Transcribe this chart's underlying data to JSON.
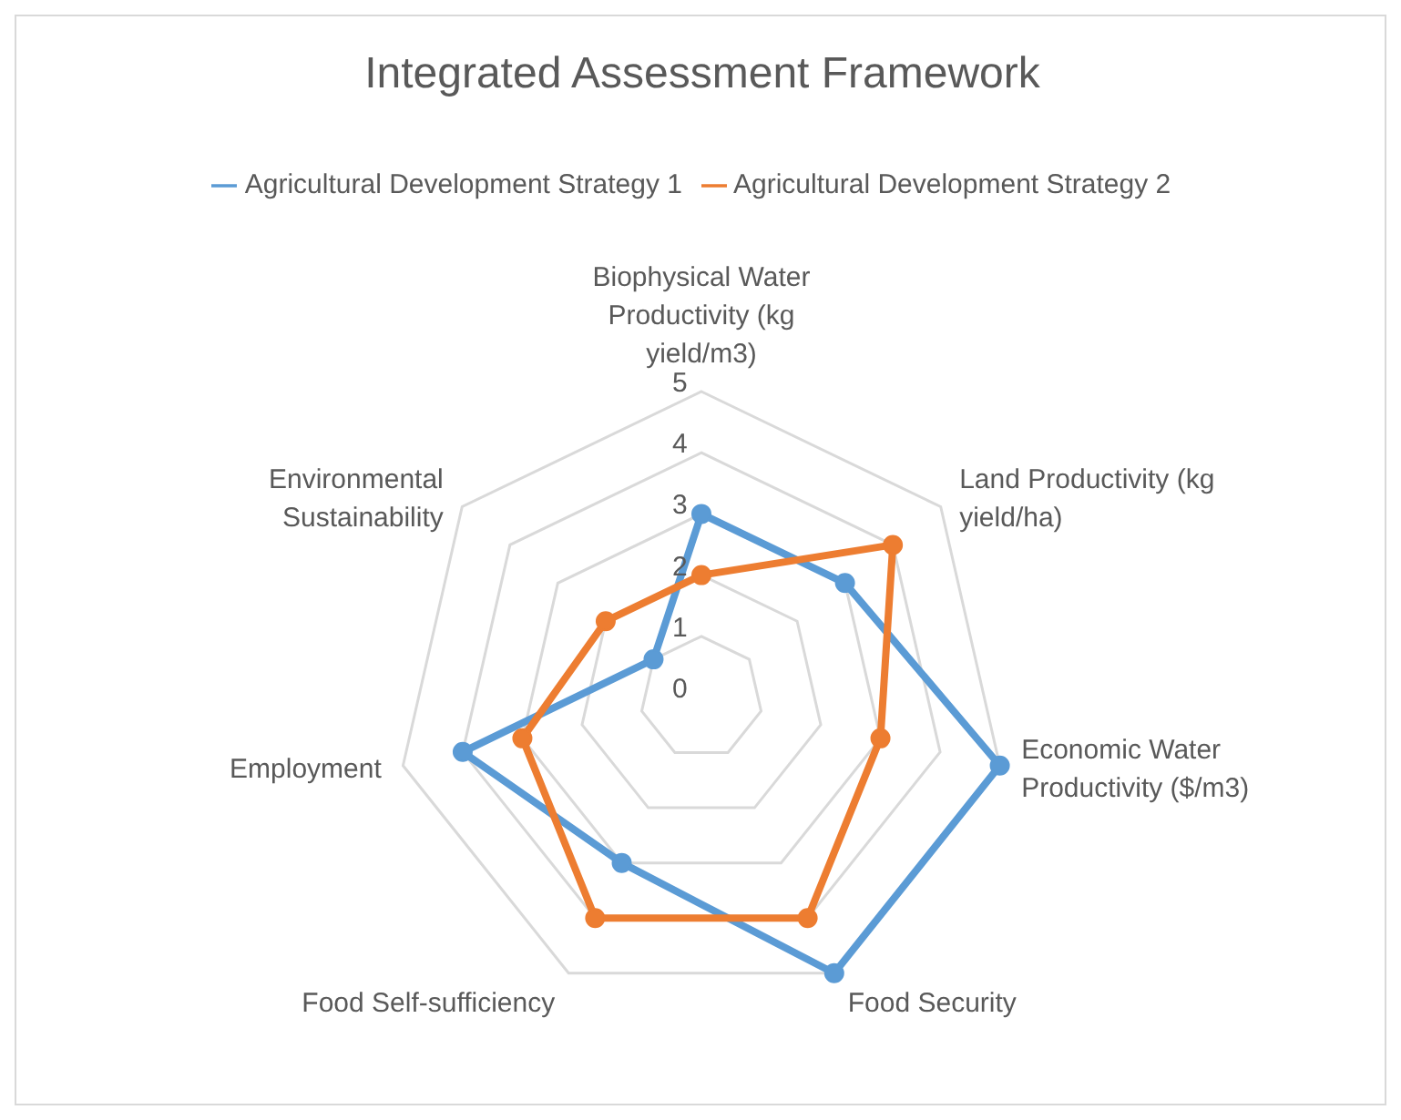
{
  "chart_data": {
    "type": "radar",
    "title": "Integrated Assessment Framework",
    "categories": [
      "Biophysical Water Productivity (kg yield/m3)",
      "Land Productivity (kg yield/ha)",
      "Economic Water Productivity ($/m3)",
      "Food Security",
      "Food Self-sufficiency",
      "Employment",
      "Environmental Sustainability"
    ],
    "series": [
      {
        "name": "Agricultural Development Strategy 1",
        "color": "#5b9bd5",
        "values": [
          3,
          3,
          5,
          5,
          3,
          4,
          1
        ]
      },
      {
        "name": "Agricultural Development Strategy 2",
        "color": "#ed7d31",
        "values": [
          2,
          4,
          3,
          4,
          4,
          3,
          2
        ]
      }
    ],
    "ylim": [
      0,
      5
    ],
    "yticks": [
      0,
      1,
      2,
      3,
      4,
      5
    ],
    "grid": true,
    "legend": "top",
    "marker": "circle",
    "line_style": "solid"
  }
}
